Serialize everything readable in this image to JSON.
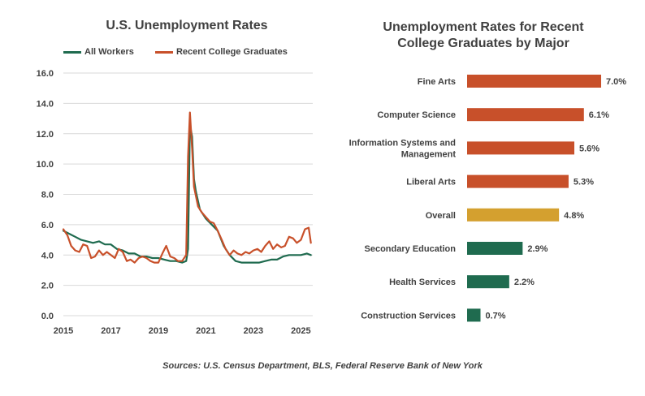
{
  "footer": {
    "source": "Sources: U.S. Census Department, BLS, Federal Reserve Bank of New York"
  },
  "colors": {
    "all_workers": "#1f6b4f",
    "recent_grads": "#c8502a",
    "overall": "#d4a02f",
    "grid": "#d9d9d9",
    "text": "#404040"
  },
  "chart_data": [
    {
      "type": "line",
      "title": "U.S. Unemployment Rates",
      "xlabel": "",
      "ylabel": "",
      "xlim": [
        2015,
        2025.5
      ],
      "ylim": [
        0,
        16
      ],
      "yticks": [
        "0.0",
        "2.0",
        "4.0",
        "6.0",
        "8.0",
        "10.0",
        "12.0",
        "14.0",
        "16.0"
      ],
      "xticks": [
        "2015",
        "2017",
        "2019",
        "2021",
        "2023",
        "2025"
      ],
      "grid": true,
      "legend": "top",
      "series": [
        {
          "name": "All Workers",
          "color": "#1f6b4f",
          "x": [
            2015.0,
            2015.25,
            2015.5,
            2015.75,
            2016.0,
            2016.25,
            2016.5,
            2016.75,
            2017.0,
            2017.25,
            2017.5,
            2017.75,
            2018.0,
            2018.25,
            2018.5,
            2018.75,
            2019.0,
            2019.25,
            2019.5,
            2019.75,
            2020.0,
            2020.17,
            2020.25,
            2020.33,
            2020.42,
            2020.5,
            2020.58,
            2020.75,
            2021.0,
            2021.25,
            2021.5,
            2021.75,
            2022.0,
            2022.25,
            2022.5,
            2022.75,
            2023.0,
            2023.25,
            2023.5,
            2023.75,
            2024.0,
            2024.25,
            2024.5,
            2024.75,
            2025.0,
            2025.25,
            2025.42
          ],
          "y": [
            5.6,
            5.4,
            5.2,
            5.0,
            4.9,
            4.8,
            4.9,
            4.7,
            4.7,
            4.4,
            4.3,
            4.1,
            4.1,
            3.9,
            3.9,
            3.8,
            3.8,
            3.7,
            3.6,
            3.6,
            3.5,
            3.6,
            4.4,
            12.6,
            11.8,
            9.0,
            8.2,
            7.0,
            6.4,
            6.0,
            5.6,
            4.6,
            4.0,
            3.6,
            3.5,
            3.5,
            3.5,
            3.5,
            3.6,
            3.7,
            3.7,
            3.9,
            4.0,
            4.0,
            4.0,
            4.1,
            4.0
          ]
        },
        {
          "name": "Recent College Graduates",
          "color": "#c8502a",
          "x": [
            2015.0,
            2015.17,
            2015.33,
            2015.5,
            2015.67,
            2015.83,
            2016.0,
            2016.17,
            2016.33,
            2016.5,
            2016.67,
            2016.83,
            2017.0,
            2017.17,
            2017.33,
            2017.5,
            2017.67,
            2017.83,
            2018.0,
            2018.17,
            2018.33,
            2018.5,
            2018.67,
            2018.83,
            2019.0,
            2019.17,
            2019.33,
            2019.5,
            2019.67,
            2019.83,
            2020.0,
            2020.17,
            2020.25,
            2020.33,
            2020.42,
            2020.5,
            2020.67,
            2020.83,
            2021.0,
            2021.17,
            2021.33,
            2021.5,
            2021.67,
            2021.83,
            2022.0,
            2022.17,
            2022.33,
            2022.5,
            2022.67,
            2022.83,
            2023.0,
            2023.17,
            2023.33,
            2023.5,
            2023.67,
            2023.83,
            2024.0,
            2024.17,
            2024.33,
            2024.5,
            2024.67,
            2024.83,
            2025.0,
            2025.17,
            2025.33,
            2025.42
          ],
          "y": [
            5.7,
            5.3,
            4.6,
            4.3,
            4.2,
            4.7,
            4.6,
            3.8,
            3.9,
            4.3,
            4.0,
            4.2,
            4.0,
            3.8,
            4.4,
            4.2,
            3.6,
            3.7,
            3.5,
            3.8,
            3.9,
            3.8,
            3.6,
            3.5,
            3.5,
            4.1,
            4.6,
            3.9,
            3.8,
            3.6,
            3.6,
            4.0,
            10.5,
            13.4,
            11.0,
            8.5,
            7.2,
            6.8,
            6.5,
            6.2,
            6.1,
            5.6,
            5.0,
            4.4,
            4.0,
            4.3,
            4.1,
            4.0,
            4.2,
            4.1,
            4.3,
            4.4,
            4.2,
            4.6,
            4.9,
            4.4,
            4.7,
            4.5,
            4.6,
            5.2,
            5.1,
            4.8,
            5.0,
            5.7,
            5.8,
            4.8
          ]
        }
      ]
    },
    {
      "type": "bar",
      "orientation": "horizontal",
      "title": "Unemployment Rates for Recent College Graduates by Major",
      "title_lines": [
        "Unemployment Rates for Recent",
        "College Graduates  by Major"
      ],
      "xlim": [
        0,
        8
      ],
      "grid": false,
      "categories": [
        "Fine Arts",
        "Computer Science",
        "Information Systems and Management",
        "Liberal Arts",
        "Overall",
        "Secondary Education",
        "Health Services",
        "Construction Services"
      ],
      "category_lines": [
        [
          "Fine Arts"
        ],
        [
          "Computer Science"
        ],
        [
          "Information Systems and",
          "Management"
        ],
        [
          "Liberal Arts"
        ],
        [
          "Overall"
        ],
        [
          "Secondary Education"
        ],
        [
          "Health Services"
        ],
        [
          "Construction Services"
        ]
      ],
      "values": [
        7.0,
        6.1,
        5.6,
        5.3,
        4.8,
        2.9,
        2.2,
        0.7
      ],
      "value_labels": [
        "7.0%",
        "6.1%",
        "5.6%",
        "5.3%",
        "4.8%",
        "2.9%",
        "2.2%",
        "0.7%"
      ],
      "bar_colors": [
        "#c8502a",
        "#c8502a",
        "#c8502a",
        "#c8502a",
        "#d4a02f",
        "#1f6b4f",
        "#1f6b4f",
        "#1f6b4f"
      ]
    }
  ]
}
